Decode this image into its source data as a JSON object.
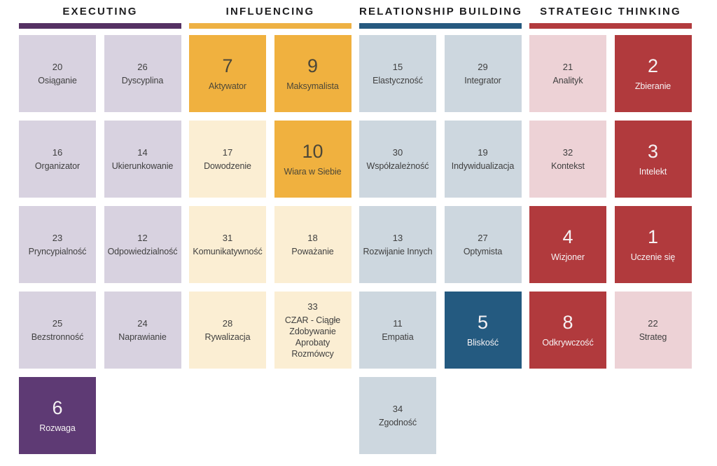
{
  "domains": [
    {
      "id": "executing",
      "label": "EXECUTING",
      "bar_color": "#553163",
      "muted_color": "#d8d2e0",
      "highlight_color": "#5e3a74"
    },
    {
      "id": "influencing",
      "label": "INFLUENCING",
      "bar_color": "#eeb144",
      "muted_color": "#fbeed3",
      "highlight_color": "#f0b13f"
    },
    {
      "id": "relationship",
      "label": "RELATIONSHIP BUILDING",
      "bar_color": "#26597f",
      "muted_color": "#cdd7df",
      "highlight_color": "#245a80"
    },
    {
      "id": "strategic",
      "label": "STRATEGIC THINKING",
      "bar_color": "#b23b3e",
      "muted_color": "#edd2d6",
      "highlight_color": "#b13a3d"
    }
  ],
  "text_colors": {
    "muted": "#3f3f3f",
    "on_dark": "#f6f2f4",
    "on_gold": "#4c4738"
  },
  "chart_data": {
    "type": "table",
    "title": "",
    "groups": [
      "EXECUTING",
      "INFLUENCING",
      "RELATIONSHIP BUILDING",
      "STRATEGIC THINKING"
    ],
    "legend_note": "ranks 1-10 highlighted",
    "items": [
      {
        "rank": 20,
        "label": "Osiąganie",
        "domain": "executing",
        "highlighted": false,
        "row": 1,
        "col": 1
      },
      {
        "rank": 26,
        "label": "Dyscyplina",
        "domain": "executing",
        "highlighted": false,
        "row": 1,
        "col": 2
      },
      {
        "rank": 7,
        "label": "Aktywator",
        "domain": "influencing",
        "highlighted": true,
        "row": 1,
        "col": 3
      },
      {
        "rank": 9,
        "label": "Maksymalista",
        "domain": "influencing",
        "highlighted": true,
        "row": 1,
        "col": 4
      },
      {
        "rank": 15,
        "label": "Elastyczność",
        "domain": "relationship",
        "highlighted": false,
        "row": 1,
        "col": 5
      },
      {
        "rank": 29,
        "label": "Integrator",
        "domain": "relationship",
        "highlighted": false,
        "row": 1,
        "col": 6
      },
      {
        "rank": 21,
        "label": "Analityk",
        "domain": "strategic",
        "highlighted": false,
        "row": 1,
        "col": 7
      },
      {
        "rank": 2,
        "label": "Zbieranie",
        "domain": "strategic",
        "highlighted": true,
        "row": 1,
        "col": 8
      },
      {
        "rank": 16,
        "label": "Organizator",
        "domain": "executing",
        "highlighted": false,
        "row": 2,
        "col": 1
      },
      {
        "rank": 14,
        "label": "Ukierunkowanie",
        "domain": "executing",
        "highlighted": false,
        "row": 2,
        "col": 2
      },
      {
        "rank": 17,
        "label": "Dowodzenie",
        "domain": "influencing",
        "highlighted": false,
        "row": 2,
        "col": 3
      },
      {
        "rank": 10,
        "label": "Wiara w Siebie",
        "domain": "influencing",
        "highlighted": true,
        "row": 2,
        "col": 4
      },
      {
        "rank": 30,
        "label": "Współzależność",
        "domain": "relationship",
        "highlighted": false,
        "row": 2,
        "col": 5
      },
      {
        "rank": 19,
        "label": "Indywidualizacja",
        "domain": "relationship",
        "highlighted": false,
        "row": 2,
        "col": 6
      },
      {
        "rank": 32,
        "label": "Kontekst",
        "domain": "strategic",
        "highlighted": false,
        "row": 2,
        "col": 7
      },
      {
        "rank": 3,
        "label": "Intelekt",
        "domain": "strategic",
        "highlighted": true,
        "row": 2,
        "col": 8
      },
      {
        "rank": 23,
        "label": "Pryncypialność",
        "domain": "executing",
        "highlighted": false,
        "row": 3,
        "col": 1
      },
      {
        "rank": 12,
        "label": "Odpowiedzialność",
        "domain": "executing",
        "highlighted": false,
        "row": 3,
        "col": 2
      },
      {
        "rank": 31,
        "label": "Komunikatywność",
        "domain": "influencing",
        "highlighted": false,
        "row": 3,
        "col": 3
      },
      {
        "rank": 18,
        "label": "Poważanie",
        "domain": "influencing",
        "highlighted": false,
        "row": 3,
        "col": 4
      },
      {
        "rank": 13,
        "label": "Rozwijanie Innych",
        "domain": "relationship",
        "highlighted": false,
        "row": 3,
        "col": 5
      },
      {
        "rank": 27,
        "label": "Optymista",
        "domain": "relationship",
        "highlighted": false,
        "row": 3,
        "col": 6
      },
      {
        "rank": 4,
        "label": "Wizjoner",
        "domain": "strategic",
        "highlighted": true,
        "row": 3,
        "col": 7
      },
      {
        "rank": 1,
        "label": "Uczenie się",
        "domain": "strategic",
        "highlighted": true,
        "row": 3,
        "col": 8
      },
      {
        "rank": 25,
        "label": "Bezstronność",
        "domain": "executing",
        "highlighted": false,
        "row": 4,
        "col": 1
      },
      {
        "rank": 24,
        "label": "Naprawianie",
        "domain": "executing",
        "highlighted": false,
        "row": 4,
        "col": 2
      },
      {
        "rank": 28,
        "label": "Rywalizacja",
        "domain": "influencing",
        "highlighted": false,
        "row": 4,
        "col": 3
      },
      {
        "rank": 33,
        "label": "CZAR - Ciągłe Zdobywanie Aprobaty Rozmówcy",
        "domain": "influencing",
        "highlighted": false,
        "row": 4,
        "col": 4
      },
      {
        "rank": 11,
        "label": "Empatia",
        "domain": "relationship",
        "highlighted": false,
        "row": 4,
        "col": 5
      },
      {
        "rank": 5,
        "label": "Bliskość",
        "domain": "relationship",
        "highlighted": true,
        "row": 4,
        "col": 6
      },
      {
        "rank": 8,
        "label": "Odkrywczość",
        "domain": "strategic",
        "highlighted": true,
        "row": 4,
        "col": 7
      },
      {
        "rank": 22,
        "label": "Strateg",
        "domain": "strategic",
        "highlighted": false,
        "row": 4,
        "col": 8
      },
      {
        "rank": 6,
        "label": "Rozwaga",
        "domain": "executing",
        "highlighted": true,
        "row": 5,
        "col": 1
      },
      {
        "rank": 34,
        "label": "Zgodność",
        "domain": "relationship",
        "highlighted": false,
        "row": 5,
        "col": 5
      }
    ]
  }
}
